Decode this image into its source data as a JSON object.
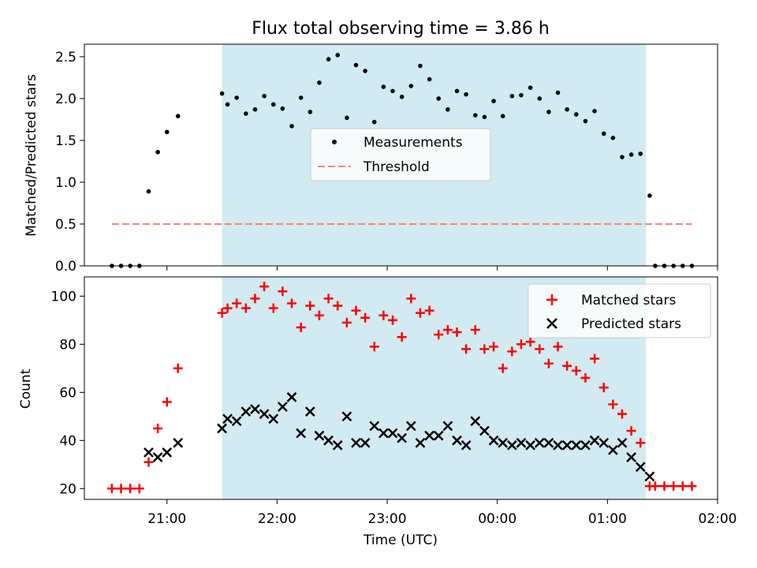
{
  "chart_data": [
    {
      "type": "scatter",
      "title": "Flux total observing time = 3.86 h",
      "xlabel": "",
      "ylabel": "Matched/Predicted stars",
      "xlim": [
        "20:15",
        "02:00"
      ],
      "ylim": [
        0,
        2.65
      ],
      "yticks": [
        "0.0",
        "0.5",
        "1.0",
        "1.5",
        "2.0",
        "2.5"
      ],
      "shaded_span": [
        "21:30",
        "01:21"
      ],
      "legend": {
        "placement": "center",
        "entries": [
          "Measurements",
          "Threshold"
        ]
      },
      "series": [
        {
          "name": "Measurements",
          "points": [
            [
              "20:30",
              0.0
            ],
            [
              "20:35",
              0.0
            ],
            [
              "20:40",
              0.0
            ],
            [
              "20:45",
              0.0
            ],
            [
              "20:50",
              0.89
            ],
            [
              "20:55",
              1.36
            ],
            [
              "21:00",
              1.6
            ],
            [
              "21:06",
              1.79
            ],
            [
              "21:30",
              2.06
            ],
            [
              "21:33",
              1.93
            ],
            [
              "21:38",
              2.01
            ],
            [
              "21:43",
              1.82
            ],
            [
              "21:48",
              1.87
            ],
            [
              "21:53",
              2.03
            ],
            [
              "21:58",
              1.93
            ],
            [
              "22:03",
              1.88
            ],
            [
              "22:08",
              1.67
            ],
            [
              "22:13",
              2.01
            ],
            [
              "22:18",
              1.84
            ],
            [
              "22:23",
              2.19
            ],
            [
              "22:28",
              2.47
            ],
            [
              "22:33",
              2.52
            ],
            [
              "22:38",
              1.77
            ],
            [
              "22:43",
              2.4
            ],
            [
              "22:48",
              2.33
            ],
            [
              "22:53",
              1.72
            ],
            [
              "22:58",
              2.14
            ],
            [
              "23:03",
              2.09
            ],
            [
              "23:08",
              2.02
            ],
            [
              "23:13",
              2.15
            ],
            [
              "23:18",
              2.39
            ],
            [
              "23:23",
              2.23
            ],
            [
              "23:28",
              2.0
            ],
            [
              "23:33",
              1.87
            ],
            [
              "23:38",
              2.09
            ],
            [
              "23:43",
              2.05
            ],
            [
              "23:48",
              1.8
            ],
            [
              "23:53",
              1.78
            ],
            [
              "23:58",
              1.97
            ],
            [
              "00:03",
              1.79
            ],
            [
              "00:08",
              2.03
            ],
            [
              "00:13",
              2.04
            ],
            [
              "00:18",
              2.13
            ],
            [
              "00:23",
              2.0
            ],
            [
              "00:28",
              1.84
            ],
            [
              "00:33",
              2.07
            ],
            [
              "00:38",
              1.87
            ],
            [
              "00:43",
              1.81
            ],
            [
              "00:48",
              1.73
            ],
            [
              "00:53",
              1.85
            ],
            [
              "00:58",
              1.58
            ],
            [
              "01:03",
              1.53
            ],
            [
              "01:08",
              1.3
            ],
            [
              "01:13",
              1.33
            ],
            [
              "01:18",
              1.34
            ],
            [
              "01:23",
              0.84
            ],
            [
              "01:26",
              0.0
            ],
            [
              "01:31",
              0.0
            ],
            [
              "01:36",
              0.0
            ],
            [
              "01:41",
              0.0
            ],
            [
              "01:46",
              0.0
            ]
          ]
        },
        {
          "name": "Threshold",
          "style": "dashed",
          "points": [
            [
              "20:30",
              0.5
            ],
            [
              "01:46",
              0.5
            ]
          ]
        }
      ]
    },
    {
      "type": "scatter",
      "title": "",
      "xlabel": "Time (UTC)",
      "ylabel": "Count",
      "xlim": [
        "20:15",
        "02:00"
      ],
      "ylim": [
        15.5,
        108
      ],
      "yticks": [
        "20",
        "40",
        "60",
        "80",
        "100"
      ],
      "xticks": [
        "21:00",
        "22:00",
        "23:00",
        "00:00",
        "01:00",
        "02:00"
      ],
      "shaded_span": [
        "21:30",
        "01:21"
      ],
      "legend": {
        "placement": "top-right",
        "entries": [
          "Matched stars",
          "Predicted stars"
        ]
      },
      "series": [
        {
          "name": "Matched stars",
          "marker": "+",
          "points": [
            [
              "20:30",
              20
            ],
            [
              "20:35",
              20
            ],
            [
              "20:40",
              20
            ],
            [
              "20:45",
              20
            ],
            [
              "20:50",
              31
            ],
            [
              "20:55",
              45
            ],
            [
              "21:00",
              56
            ],
            [
              "21:06",
              70
            ],
            [
              "21:30",
              93
            ],
            [
              "21:33",
              95
            ],
            [
              "21:38",
              97
            ],
            [
              "21:43",
              95
            ],
            [
              "21:48",
              99
            ],
            [
              "21:53",
              104
            ],
            [
              "21:58",
              95
            ],
            [
              "22:03",
              102
            ],
            [
              "22:08",
              97
            ],
            [
              "22:13",
              87
            ],
            [
              "22:18",
              96
            ],
            [
              "22:23",
              92
            ],
            [
              "22:28",
              99
            ],
            [
              "22:33",
              96
            ],
            [
              "22:38",
              89
            ],
            [
              "22:43",
              94
            ],
            [
              "22:48",
              91
            ],
            [
              "22:53",
              79
            ],
            [
              "22:58",
              92
            ],
            [
              "23:03",
              90
            ],
            [
              "23:08",
              83
            ],
            [
              "23:13",
              99
            ],
            [
              "23:18",
              93
            ],
            [
              "23:23",
              94
            ],
            [
              "23:28",
              84
            ],
            [
              "23:33",
              86
            ],
            [
              "23:38",
              85
            ],
            [
              "23:43",
              78
            ],
            [
              "23:48",
              86
            ],
            [
              "23:53",
              78
            ],
            [
              "23:58",
              79
            ],
            [
              "00:03",
              70
            ],
            [
              "00:08",
              77
            ],
            [
              "00:13",
              80
            ],
            [
              "00:18",
              81
            ],
            [
              "00:23",
              78
            ],
            [
              "00:28",
              72
            ],
            [
              "00:33",
              79
            ],
            [
              "00:38",
              71
            ],
            [
              "00:43",
              69
            ],
            [
              "00:48",
              66
            ],
            [
              "00:53",
              74
            ],
            [
              "00:58",
              62
            ],
            [
              "01:03",
              55
            ],
            [
              "01:08",
              51
            ],
            [
              "01:13",
              44
            ],
            [
              "01:18",
              39
            ],
            [
              "01:23",
              21
            ],
            [
              "01:26",
              21
            ],
            [
              "01:31",
              21
            ],
            [
              "01:36",
              21
            ],
            [
              "01:41",
              21
            ],
            [
              "01:46",
              21
            ]
          ]
        },
        {
          "name": "Predicted stars",
          "marker": "x",
          "points": [
            [
              "20:50",
              35
            ],
            [
              "20:55",
              33
            ],
            [
              "21:00",
              35
            ],
            [
              "21:06",
              39
            ],
            [
              "21:30",
              45
            ],
            [
              "21:33",
              49
            ],
            [
              "21:38",
              48
            ],
            [
              "21:43",
              52
            ],
            [
              "21:48",
              53
            ],
            [
              "21:53",
              51
            ],
            [
              "21:58",
              49
            ],
            [
              "22:03",
              54
            ],
            [
              "22:08",
              58
            ],
            [
              "22:13",
              43
            ],
            [
              "22:18",
              52
            ],
            [
              "22:23",
              42
            ],
            [
              "22:28",
              40
            ],
            [
              "22:33",
              38
            ],
            [
              "22:38",
              50
            ],
            [
              "22:43",
              39
            ],
            [
              "22:48",
              39
            ],
            [
              "22:53",
              46
            ],
            [
              "22:58",
              43
            ],
            [
              "23:03",
              43
            ],
            [
              "23:08",
              41
            ],
            [
              "23:13",
              46
            ],
            [
              "23:18",
              39
            ],
            [
              "23:23",
              42
            ],
            [
              "23:28",
              42
            ],
            [
              "23:33",
              46
            ],
            [
              "23:38",
              40
            ],
            [
              "23:43",
              38
            ],
            [
              "23:48",
              48
            ],
            [
              "23:53",
              44
            ],
            [
              "23:58",
              40
            ],
            [
              "00:03",
              39
            ],
            [
              "00:08",
              38
            ],
            [
              "00:13",
              39
            ],
            [
              "00:18",
              38
            ],
            [
              "00:23",
              39
            ],
            [
              "00:28",
              39
            ],
            [
              "00:33",
              38
            ],
            [
              "00:38",
              38
            ],
            [
              "00:43",
              38
            ],
            [
              "00:48",
              38
            ],
            [
              "00:53",
              40
            ],
            [
              "00:58",
              39
            ],
            [
              "01:03",
              36
            ],
            [
              "01:08",
              39
            ],
            [
              "01:13",
              33
            ],
            [
              "01:18",
              29
            ],
            [
              "01:23",
              25
            ]
          ]
        }
      ]
    }
  ],
  "colors": {
    "shade": "#add8e6",
    "measurements": "#000000",
    "threshold": "#ff7f7f",
    "matched": "#ff0000",
    "predicted": "#000000"
  }
}
